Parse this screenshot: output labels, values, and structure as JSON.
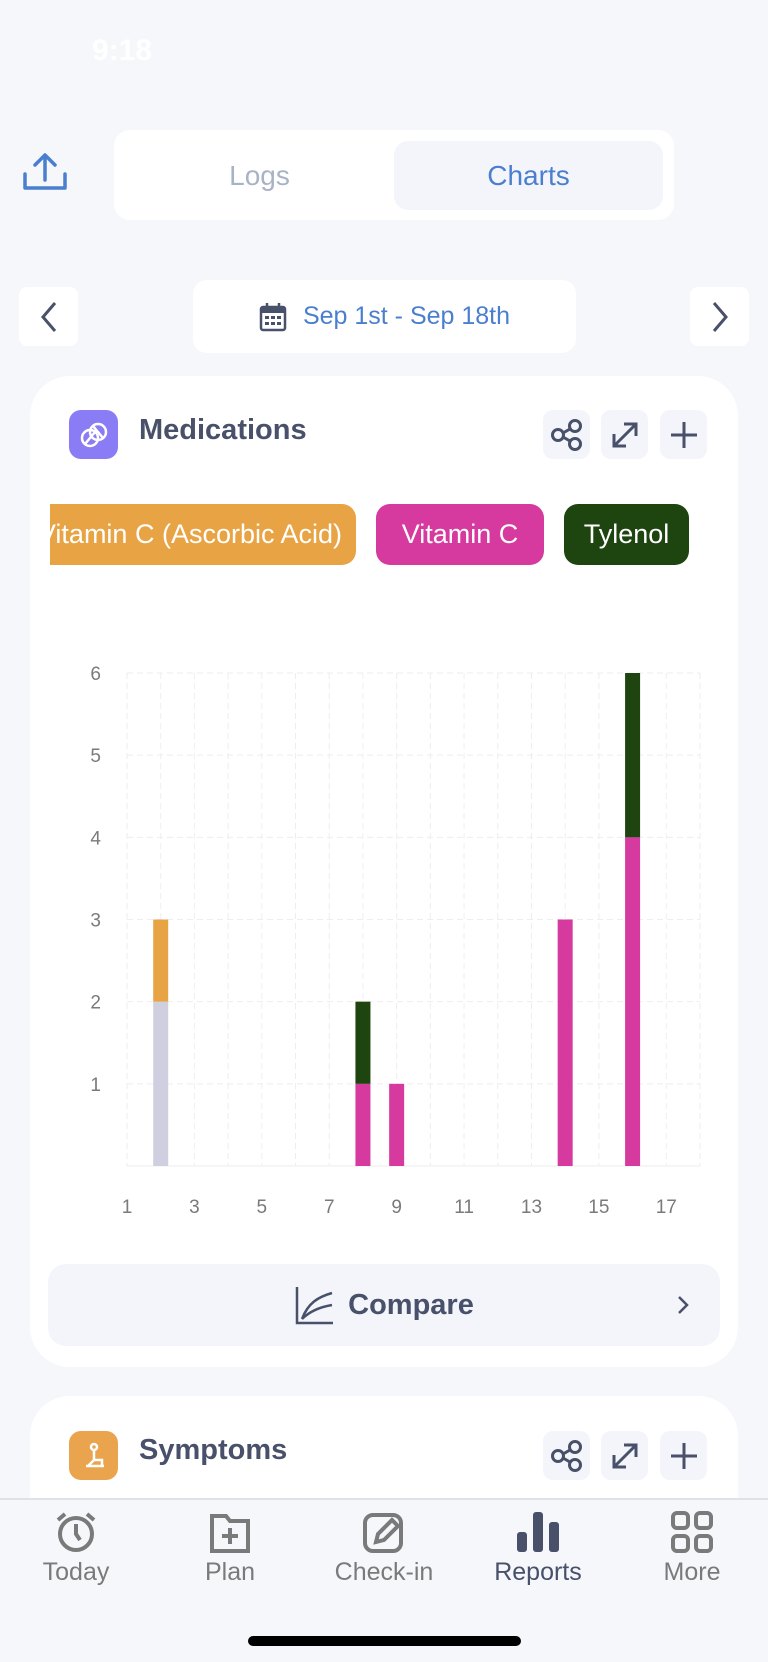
{
  "status": {
    "time": "9:18"
  },
  "header": {
    "tabs": [
      {
        "label": "Logs",
        "active": false
      },
      {
        "label": "Charts",
        "active": true
      }
    ],
    "share_icon": "share-icon"
  },
  "date_nav": {
    "range": "Sep 1st - Sep 18th"
  },
  "medications": {
    "title": "Medications",
    "chips": [
      {
        "label": "Vitamin C (Ascorbic Acid)",
        "color": "#e8a444"
      },
      {
        "label": "Vitamin C",
        "color": "#d63a9e"
      },
      {
        "label": "Tylenol",
        "color": "#1e4410"
      }
    ],
    "compare_label": "Compare"
  },
  "symptoms": {
    "title": "Symptoms"
  },
  "tabbar": [
    {
      "label": "Today"
    },
    {
      "label": "Plan"
    },
    {
      "label": "Check-in"
    },
    {
      "label": "Reports",
      "active": true
    },
    {
      "label": "More"
    }
  ],
  "chart_data": {
    "type": "bar",
    "stacked": true,
    "xlim": [
      1,
      18
    ],
    "ylim": [
      0,
      6
    ],
    "xticks": [
      "1",
      "3",
      "5",
      "7",
      "9",
      "11",
      "13",
      "15",
      "17"
    ],
    "yticks": [
      "1",
      "2",
      "3",
      "4",
      "5",
      "6"
    ],
    "grid": true,
    "x": [
      2,
      8,
      9,
      14,
      16
    ],
    "series": [
      {
        "color": "#cfcfe0",
        "values": [
          2,
          0,
          0,
          0,
          0
        ]
      },
      {
        "name": "Vitamin C (Ascorbic Acid)",
        "color": "#e8a444",
        "values": [
          1,
          0,
          0,
          0,
          0
        ]
      },
      {
        "name": "Vitamin C",
        "color": "#d63a9e",
        "values": [
          0,
          1,
          1,
          3,
          4
        ]
      },
      {
        "name": "Tylenol",
        "color": "#1e4410",
        "values": [
          0,
          1,
          0,
          0,
          2
        ]
      }
    ]
  }
}
